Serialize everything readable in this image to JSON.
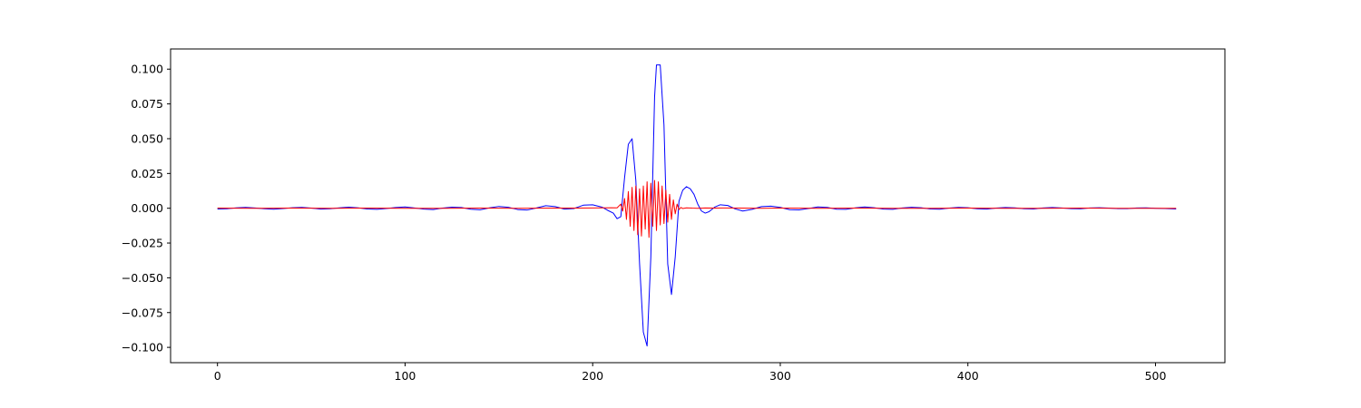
{
  "chart_data": {
    "type": "line",
    "title": "",
    "xlabel": "",
    "ylabel": "",
    "xlim": [
      -25,
      537
    ],
    "ylim": [
      -0.111,
      0.1145
    ],
    "x_ticks": [
      0,
      100,
      200,
      300,
      400,
      500
    ],
    "x_tick_labels": [
      "0",
      "100",
      "200",
      "300",
      "400",
      "500"
    ],
    "y_ticks": [
      -0.1,
      -0.075,
      -0.05,
      -0.025,
      0.0,
      0.025,
      0.05,
      0.075,
      0.1
    ],
    "y_tick_labels": [
      "−0.100",
      "−0.075",
      "−0.050",
      "−0.025",
      "0.000",
      "0.025",
      "0.050",
      "0.075",
      "0.100"
    ],
    "grid": false,
    "legend": "none",
    "series": [
      {
        "color": "#0000ff",
        "x": [
          0,
          5,
          10,
          15,
          20,
          25,
          30,
          35,
          40,
          45,
          50,
          55,
          60,
          65,
          70,
          75,
          80,
          85,
          90,
          95,
          100,
          105,
          110,
          115,
          120,
          125,
          130,
          135,
          140,
          145,
          150,
          155,
          160,
          165,
          170,
          175,
          180,
          185,
          190,
          195,
          200,
          205,
          208,
          211,
          213,
          215,
          217,
          219,
          221,
          223,
          225,
          227,
          229,
          231,
          233,
          234,
          236,
          238,
          240,
          242,
          244,
          246,
          248,
          250,
          252,
          254,
          256,
          258,
          260,
          262,
          265,
          268,
          272,
          276,
          280,
          285,
          290,
          295,
          300,
          305,
          310,
          315,
          320,
          325,
          330,
          335,
          340,
          345,
          350,
          355,
          360,
          365,
          370,
          375,
          380,
          385,
          390,
          395,
          400,
          405,
          410,
          415,
          420,
          425,
          430,
          435,
          440,
          445,
          450,
          455,
          460,
          465,
          470,
          475,
          480,
          485,
          490,
          495,
          500,
          505,
          511
        ],
        "values": [
          -0.0005,
          -0.0004,
          0.0003,
          0.0006,
          0.0002,
          -0.0004,
          -0.0007,
          -0.0002,
          0.0004,
          0.0006,
          0.0001,
          -0.0006,
          -0.0004,
          0.0003,
          0.0008,
          0.0003,
          -0.0005,
          -0.0008,
          -0.0002,
          0.0005,
          0.0009,
          0.0002,
          -0.0006,
          -0.0009,
          0.0001,
          0.0008,
          0.0005,
          -0.0007,
          -0.0011,
          0.0003,
          0.0013,
          0.0007,
          -0.0009,
          -0.0013,
          0.0002,
          0.0018,
          0.0012,
          -0.0006,
          -0.0002,
          0.0022,
          0.0025,
          0.0008,
          -0.0015,
          -0.0035,
          -0.0075,
          -0.006,
          0.022,
          0.046,
          0.05,
          0.02,
          -0.04,
          -0.089,
          -0.099,
          -0.035,
          0.08,
          0.103,
          0.103,
          0.06,
          -0.04,
          -0.062,
          -0.035,
          0.005,
          0.013,
          0.0155,
          0.014,
          0.01,
          0.003,
          -0.002,
          -0.0035,
          -0.0025,
          0.0008,
          0.0025,
          0.002,
          -0.0005,
          -0.002,
          -0.0008,
          0.0012,
          0.0015,
          0.0006,
          -0.001,
          -0.0012,
          -0.0002,
          0.0009,
          0.0006,
          -0.0007,
          -0.0008,
          0.0003,
          0.0009,
          0.0004,
          -0.0006,
          -0.0008,
          0.0002,
          0.0007,
          0.0004,
          -0.0005,
          -0.0007,
          0.0001,
          0.0006,
          0.0004,
          -0.0004,
          -0.0006,
          0.0001,
          0.0005,
          0.0003,
          -0.0004,
          -0.0005,
          0.0002,
          0.0005,
          0.0002,
          -0.0003,
          -0.0004,
          0.0002,
          0.0004,
          0.0001,
          -0.0003,
          -0.0003,
          0.0002,
          0.0003,
          0.0,
          -0.0002,
          -0.0005
        ]
      },
      {
        "color": "#ff0000",
        "x": [
          0,
          20,
          40,
          60,
          80,
          100,
          120,
          140,
          160,
          180,
          200,
          210,
          213,
          215,
          216,
          217,
          218,
          219,
          220,
          221,
          222,
          223,
          224,
          225,
          226,
          227,
          228,
          229,
          230,
          231,
          232,
          233,
          234,
          235,
          236,
          237,
          238,
          239,
          240,
          241,
          242,
          243,
          244,
          245,
          246,
          247,
          248,
          250,
          253,
          256,
          260,
          265,
          270,
          280,
          290,
          300,
          320,
          340,
          360,
          380,
          400,
          420,
          440,
          460,
          480,
          500,
          511
        ],
        "values": [
          0.0001,
          0.0,
          0.0001,
          0.0,
          0.0001,
          0.0,
          0.0,
          0.0001,
          0.0,
          0.0001,
          0.0002,
          0.0004,
          0.0003,
          0.003,
          -0.002,
          0.007,
          -0.008,
          0.012,
          -0.013,
          0.015,
          -0.016,
          0.016,
          -0.019,
          0.014,
          -0.02,
          0.016,
          -0.015,
          0.019,
          -0.021,
          0.018,
          -0.013,
          0.02,
          -0.016,
          0.019,
          -0.012,
          0.016,
          -0.011,
          0.013,
          -0.01,
          0.01,
          -0.008,
          0.006,
          -0.004,
          0.003,
          -0.001,
          0.0006,
          -0.0002,
          0.0003,
          0.0001,
          0.0,
          0.0002,
          0.0001,
          0.0002,
          0.0001,
          0.0,
          0.0001,
          0.0,
          0.0001,
          0.0,
          0.0,
          0.0001,
          0.0,
          0.0,
          0.0001,
          0.0,
          0.0,
          0.0
        ]
      }
    ]
  }
}
